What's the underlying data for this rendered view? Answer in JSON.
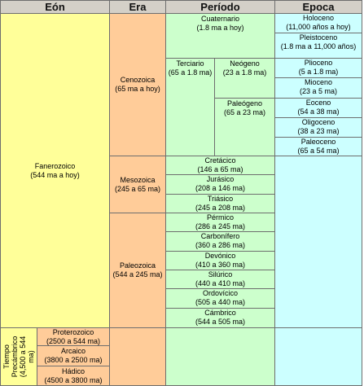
{
  "headers": {
    "eon": "Eón",
    "era": "Era",
    "periodo": "Período",
    "epoca": "Epoca"
  },
  "eons": {
    "fanerozoico": {
      "name": "Fanerozoico",
      "range": "(544 ma a hoy)"
    },
    "precambrico": {
      "name": "Tiempo Precámbrico",
      "range": "(4,500 a 544 ma)"
    }
  },
  "eras": {
    "cenozoica": {
      "name": "Cenozoica",
      "range": "(65 ma a hoy)"
    },
    "mesozoica": {
      "name": "Mesozoica",
      "range": "(245 a 65 ma)"
    },
    "paleozoica": {
      "name": "Paleozoica",
      "range": "(544 a 245 ma)"
    },
    "proterozoico": {
      "name": "Proterozoico",
      "range": "(2500 a 544 ma)"
    },
    "arcaico": {
      "name": "Arcaico",
      "range": "(3800 a 2500 ma)"
    },
    "hadico": {
      "name": "Hádico",
      "range": "(4500 a 3800 ma)"
    }
  },
  "periods": {
    "cuaternario": {
      "name": "Cuaternario",
      "range": "(1.8 ma a hoy)"
    },
    "terciario": {
      "name": "Terciario",
      "range": "(65 a 1.8 ma)"
    },
    "neogeno": {
      "name": "Neógeno",
      "range": "(23 a 1.8 ma)"
    },
    "paleogeno": {
      "name": "Paleógeno",
      "range": "(65 a 23 ma)"
    },
    "cretacico": {
      "name": "Cretácico",
      "range": "(146 a 65 ma)"
    },
    "jurasico": {
      "name": "Jurásico",
      "range": "(208 a 146 ma)"
    },
    "triasico": {
      "name": "Triásico",
      "range": "(245 a 208 ma)"
    },
    "permico": {
      "name": "Pérmico",
      "range": "(286 a 245 ma)"
    },
    "carbonifero": {
      "name": "Carbonífero",
      "range": "(360 a 286 ma)"
    },
    "devonico": {
      "name": "Devónico",
      "range": "(410 a 360 ma)"
    },
    "silurico": {
      "name": "Silúrico",
      "range": "(440 a 410 ma)"
    },
    "ordovicico": {
      "name": "Ordovícico",
      "range": "(505 a 440 ma)"
    },
    "cambrico": {
      "name": "Cámbrico",
      "range": "(544 a 505 ma)"
    }
  },
  "epochs": {
    "holoceno": {
      "name": "Holoceno",
      "range": "(11,000 años a hoy)"
    },
    "pleistoceno": {
      "name": "Pleistoceno",
      "range": "(1.8 ma a 11,000 años)"
    },
    "plioceno": {
      "name": "Plioceno",
      "range": "(5 a 1.8 ma)"
    },
    "mioceno": {
      "name": "Mioceno",
      "range": "(23 a 5 ma)"
    },
    "eoceno": {
      "name": "Eoceno",
      "range": "(54 a 38 ma)"
    },
    "oligoceno": {
      "name": "Oligoceno",
      "range": "(38 a 23 ma)"
    },
    "paleoceno": {
      "name": "Paleoceno",
      "range": "(65 a 54 ma)"
    }
  },
  "colors": {
    "header": "#d4d0c8",
    "eon": "#ffff99",
    "era": "#ffcc99",
    "periodo": "#ccffcc",
    "epoca": "#ccffff"
  }
}
